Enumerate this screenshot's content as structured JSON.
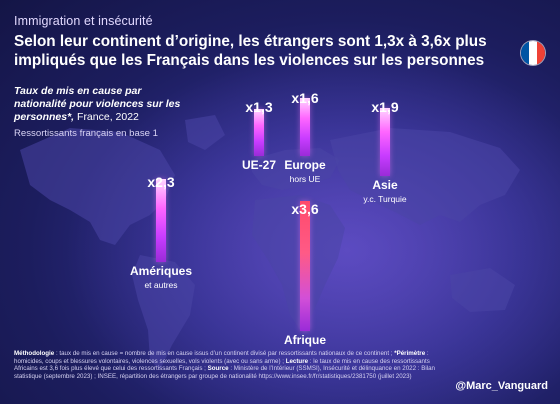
{
  "kicker": "Immigration et insécurité",
  "title": "Selon leur continent d’origine, les étrangers sont 1,3x à 3,6x plus impliqués que les Français dans les violences sur les personnes",
  "subtitle": {
    "main": "Taux de mis en cause par nationalité pour violences sur les personnes*,",
    "rest": " France, 2022"
  },
  "baseline_note": "Ressortissants français en base 1",
  "flag_colors": [
    "#0055a4",
    "#ffffff",
    "#ef4135"
  ],
  "chart_data": {
    "type": "bar",
    "categories": [
      "UE-27",
      "Europe",
      "Asie",
      "Amériques",
      "Afrique"
    ],
    "category_notes": [
      "",
      "hors UE",
      "y.c. Turquie",
      "et autres",
      ""
    ],
    "values": [
      1.3,
      1.6,
      1.9,
      2.3,
      3.6
    ],
    "value_labels": [
      "x1,3",
      "x1,6",
      "x1,9",
      "x2,3",
      "x3,6"
    ],
    "ylim": [
      0,
      3.6
    ],
    "highlight_color": "#ff4a6a",
    "bar_color": "#ff66ff"
  },
  "methodology": {
    "label_methodo": "Méthodologie",
    "text_methodo": " : taux de mis en cause = nombre de mis en cause issus d’un continent divisé par ressortissants nationaux de ce continent ; ",
    "label_perimetre": "*Périmètre",
    "text_perimetre": " : homicides, coups et blessures volontaires, violences sexuelles, vols violents (avec ou sans arme) ; ",
    "label_lecture": "Lecture",
    "text_lecture": " : le taux de mis en cause des ressortissants Africains est 3,6 fois plus élevé que celui des ressortissants Français ; ",
    "label_source": "Source",
    "text_source": " : Ministère de l’Intérieur (SSMSI), Insécurité et délinquance en 2022 : Bilan statistique (septembre 2023) ; INSEE, répartition des étrangers par groupe de nationalité https://www.insee.fr/fr/statistiques/2381750 (juillet 2023)"
  },
  "handle": "@Marc_Vanguard"
}
